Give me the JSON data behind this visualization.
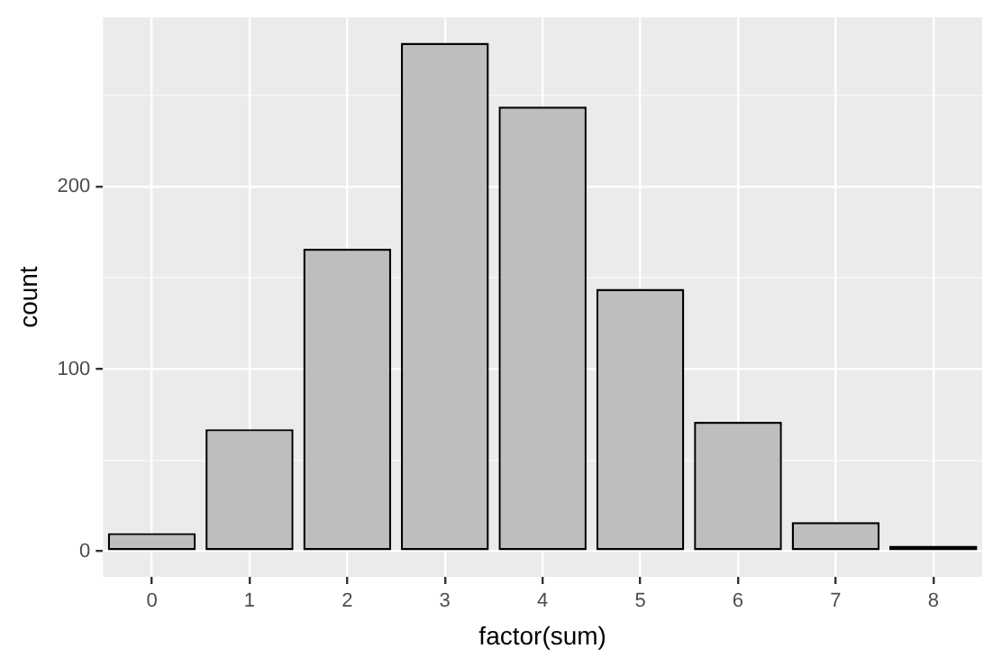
{
  "chart_data": {
    "type": "bar",
    "xlabel": "factor(sum)",
    "ylabel": "count",
    "categories": [
      "0",
      "1",
      "2",
      "3",
      "4",
      "5",
      "6",
      "7",
      "8"
    ],
    "values": [
      10,
      67,
      166,
      279,
      244,
      144,
      71,
      16,
      3
    ],
    "color": "#bebebe",
    "ylim": [
      -14,
      293
    ],
    "yticks": [
      0,
      {
        "value": 50,
        "label": null
      },
      100,
      {
        "value": 150,
        "label": null
      },
      200,
      {
        "value": 250,
        "label": null
      }
    ],
    "grid": true,
    "legend": false
  }
}
